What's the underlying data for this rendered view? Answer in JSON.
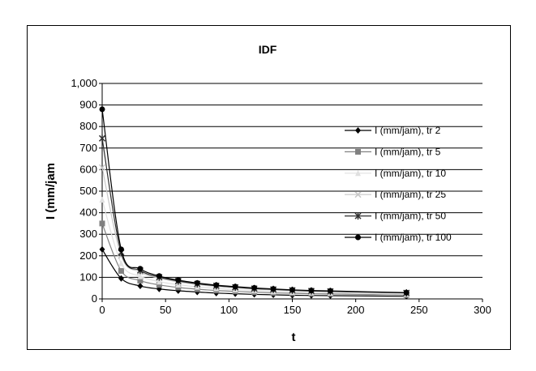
{
  "chart_data": {
    "type": "line",
    "title": "IDF",
    "xlabel": "t",
    "ylabel": "I (mm/jam",
    "xlim": [
      0,
      300
    ],
    "ylim": [
      0,
      1000
    ],
    "xticks": [
      "0",
      "50",
      "100",
      "150",
      "200",
      "250",
      "300"
    ],
    "yticks": [
      "0",
      "100",
      "200",
      "300",
      "400",
      "500",
      "600",
      "700",
      "800",
      "900",
      "1,000"
    ],
    "grid": "horizontal",
    "legend_position": "right",
    "x": [
      0,
      15,
      30,
      45,
      60,
      75,
      90,
      105,
      120,
      135,
      150,
      165,
      180,
      240
    ],
    "series": [
      {
        "name": "I (mm/jam), tr 2",
        "color": "#000000",
        "marker": "diamond",
        "values": [
          230,
          95,
          60,
          46,
          38,
          32,
          27,
          24,
          21,
          19,
          17,
          16,
          15,
          12
        ]
      },
      {
        "name": "I (mm/jam), tr 5",
        "color": "#808080",
        "marker": "square",
        "values": [
          350,
          130,
          85,
          65,
          53,
          45,
          39,
          35,
          31,
          28,
          26,
          24,
          23,
          18
        ]
      },
      {
        "name": "I (mm/jam), tr 10",
        "color": "#e0e0e0",
        "marker": "triangle",
        "values": [
          460,
          165,
          105,
          80,
          66,
          56,
          49,
          43,
          39,
          35,
          32,
          30,
          28,
          22
        ]
      },
      {
        "name": "I (mm/jam), tr 25",
        "color": "#c8c8c8",
        "marker": "x",
        "values": [
          610,
          200,
          125,
          96,
          79,
          67,
          58,
          52,
          46,
          42,
          39,
          36,
          34,
          27
        ]
      },
      {
        "name": "I (mm/jam), tr 50",
        "color": "#303030",
        "marker": "star",
        "values": [
          745,
          215,
          132,
          101,
          83,
          70,
          61,
          54,
          48,
          44,
          40,
          37,
          35,
          28
        ]
      },
      {
        "name": "I (mm/jam), tr 100",
        "color": "#000000",
        "marker": "circle",
        "values": [
          880,
          230,
          140,
          106,
          87,
          74,
          64,
          57,
          51,
          46,
          42,
          39,
          37,
          29
        ]
      }
    ]
  }
}
